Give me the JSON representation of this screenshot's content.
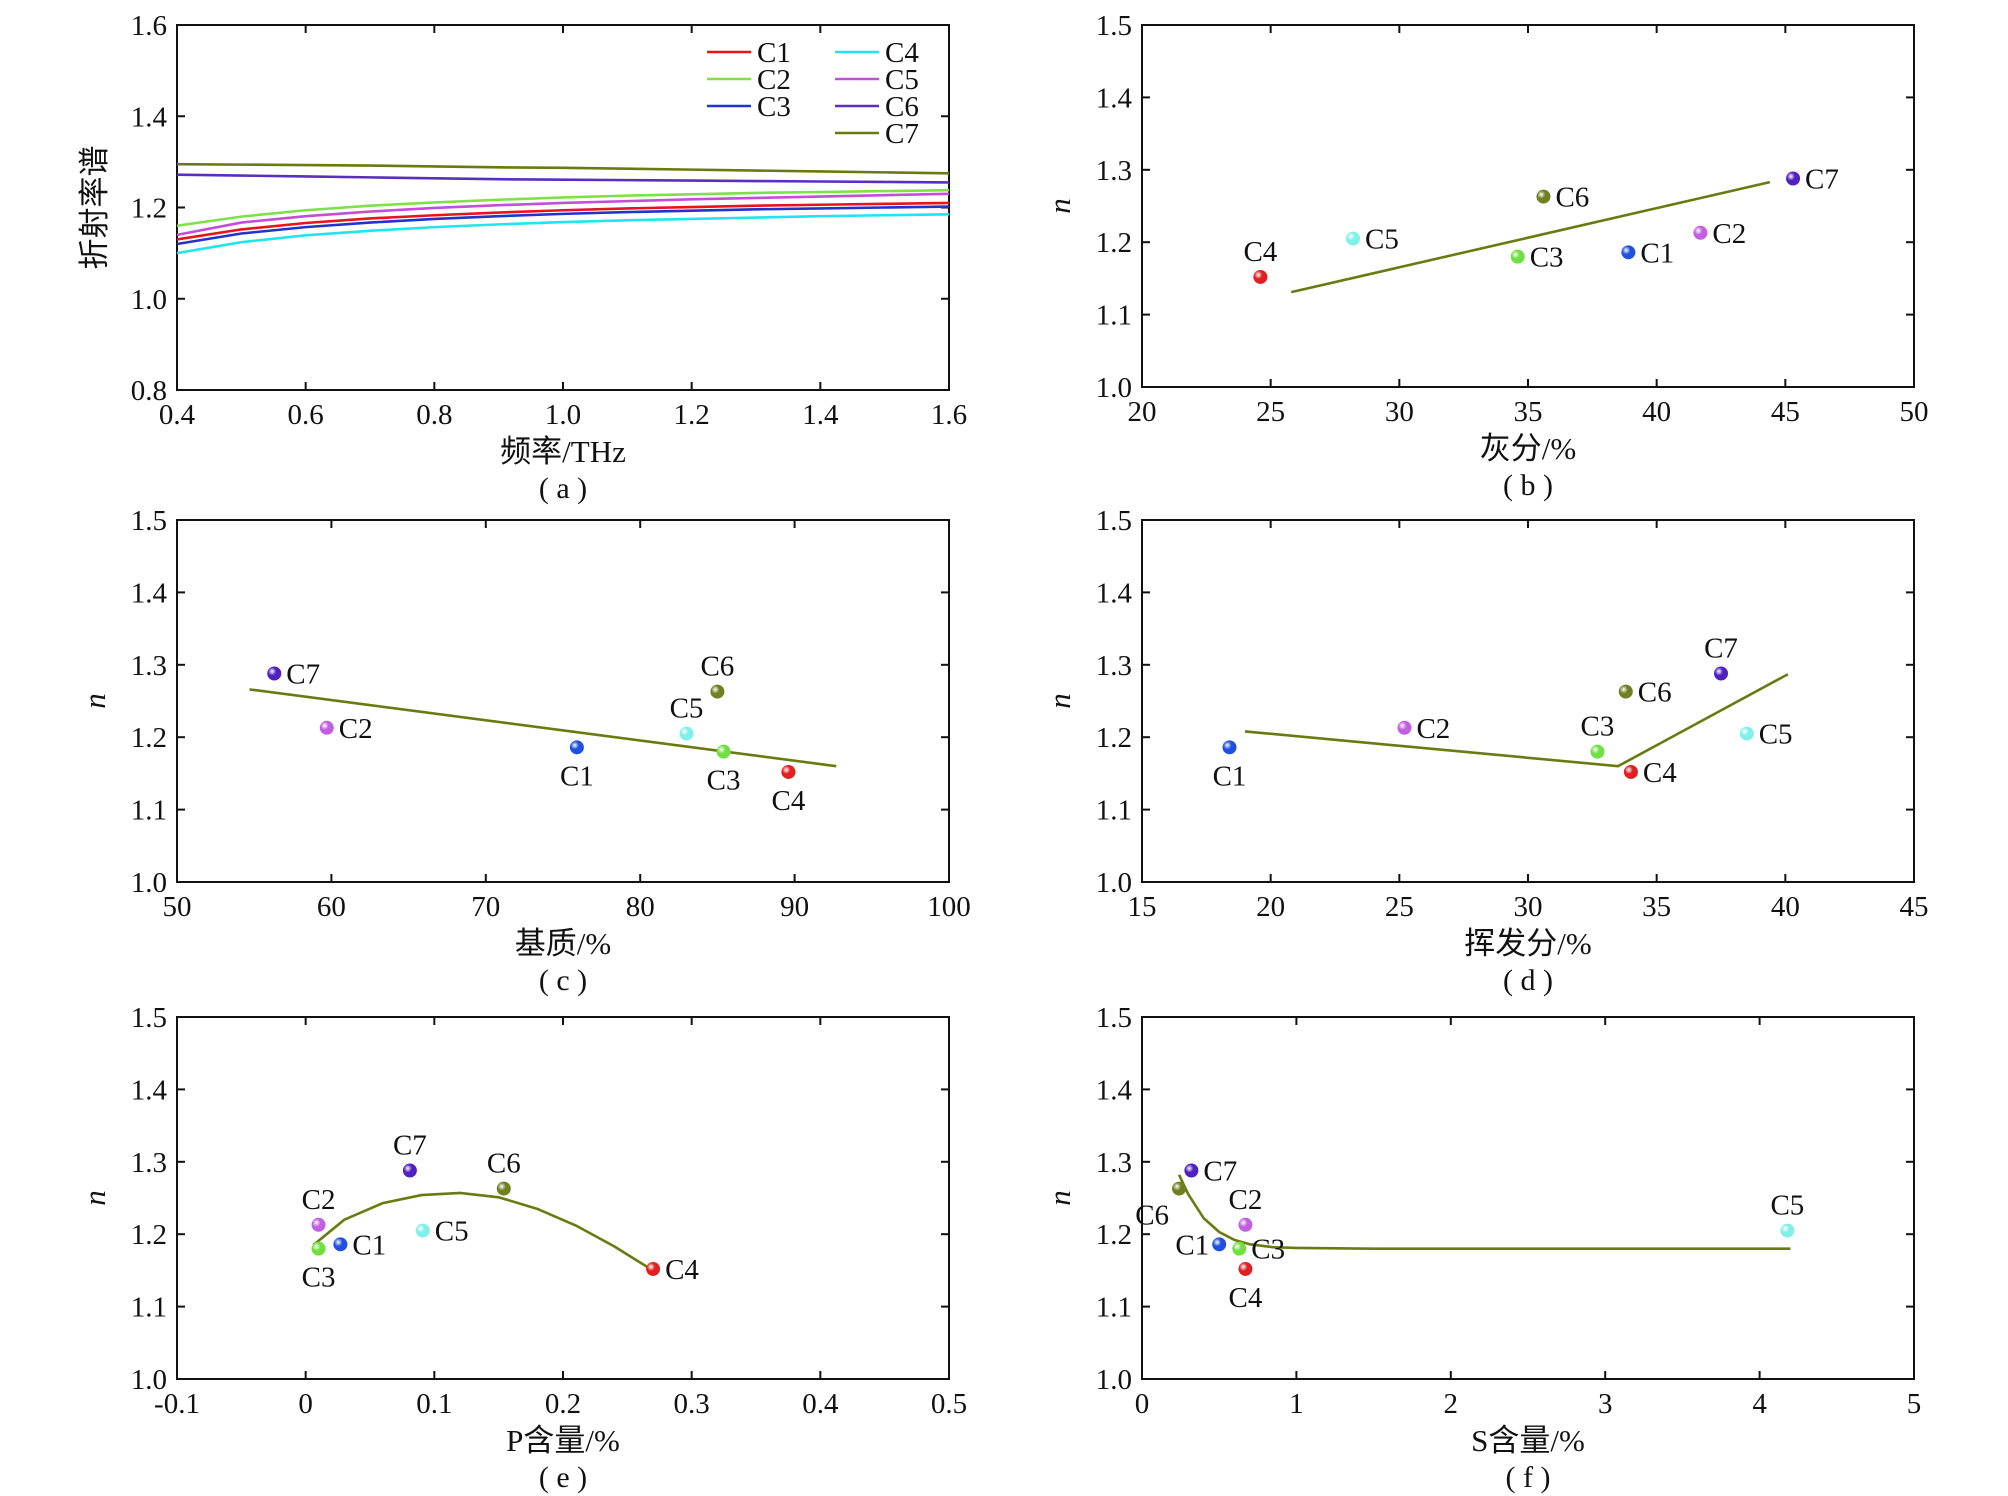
{
  "figure": {
    "colors": {
      "C1": "#e8141c",
      "C2": "#7ee04a",
      "C3": "#2233cc",
      "C4": "#22e4ee",
      "C5": "#c24fd6",
      "C6": "#5a2fc0",
      "C7": "#6b7a10",
      "fit": "#6b7a10"
    },
    "marker_colors": {
      "C1": "#2050e0",
      "C2": "#c060e0",
      "C3": "#70e040",
      "C4": "#e02020",
      "C5": "#80f0e8",
      "C6": "#708020",
      "C7": "#5020c0"
    }
  },
  "chart_data": [
    {
      "id": "a",
      "type": "line",
      "caption": "( a )",
      "xlabel": "频率/THz",
      "ylabel": "折射率谱",
      "xlim": [
        0.4,
        1.6
      ],
      "ylim": [
        0.8,
        1.6
      ],
      "xticks": [
        0.4,
        0.6,
        0.8,
        1.0,
        1.2,
        1.4,
        1.6
      ],
      "xtick_labels": [
        "0.4",
        "0.6",
        "0.8",
        "1.0",
        "1.2",
        "1.4",
        "1.6"
      ],
      "yticks": [
        0.8,
        1.0,
        1.2,
        1.4,
        1.6
      ],
      "ytick_labels": [
        "0.8",
        "1.0",
        "1.2",
        "1.4",
        "1.6"
      ],
      "legend": {
        "position": "top-right",
        "columns": 2
      },
      "x": [
        0.4,
        0.5,
        0.6,
        0.7,
        0.8,
        0.9,
        1.0,
        1.1,
        1.2,
        1.3,
        1.4,
        1.5,
        1.6
      ],
      "series": [
        {
          "name": "C1",
          "values": [
            1.13,
            1.152,
            1.166,
            1.176,
            1.183,
            1.189,
            1.194,
            1.198,
            1.201,
            1.204,
            1.206,
            1.208,
            1.21
          ]
        },
        {
          "name": "C2",
          "values": [
            1.16,
            1.18,
            1.194,
            1.204,
            1.211,
            1.217,
            1.222,
            1.226,
            1.229,
            1.232,
            1.234,
            1.236,
            1.238
          ]
        },
        {
          "name": "C3",
          "values": [
            1.12,
            1.143,
            1.157,
            1.167,
            1.175,
            1.181,
            1.186,
            1.19,
            1.193,
            1.196,
            1.198,
            1.2,
            1.202
          ]
        },
        {
          "name": "C4",
          "values": [
            1.1,
            1.124,
            1.139,
            1.149,
            1.157,
            1.163,
            1.168,
            1.172,
            1.175,
            1.178,
            1.181,
            1.183,
            1.185
          ]
        },
        {
          "name": "C5",
          "values": [
            1.14,
            1.167,
            1.181,
            1.191,
            1.199,
            1.205,
            1.21,
            1.214,
            1.218,
            1.221,
            1.224,
            1.227,
            1.23
          ]
        },
        {
          "name": "C6",
          "values": [
            1.272,
            1.27,
            1.268,
            1.266,
            1.264,
            1.262,
            1.261,
            1.26,
            1.259,
            1.258,
            1.257,
            1.256,
            1.255
          ]
        },
        {
          "name": "C7",
          "values": [
            1.295,
            1.294,
            1.293,
            1.292,
            1.29,
            1.288,
            1.287,
            1.285,
            1.283,
            1.281,
            1.279,
            1.277,
            1.275
          ]
        }
      ]
    },
    {
      "id": "b",
      "type": "scatter",
      "caption": "( b )",
      "xlabel": "灰分/%",
      "ylabel": "n",
      "xlim": [
        20,
        50
      ],
      "ylim": [
        1.0,
        1.5
      ],
      "xticks": [
        20,
        25,
        30,
        35,
        40,
        45,
        50
      ],
      "xtick_labels": [
        "20",
        "25",
        "30",
        "35",
        "40",
        "45",
        "50"
      ],
      "yticks": [
        1.0,
        1.1,
        1.2,
        1.3,
        1.4,
        1.5
      ],
      "ytick_labels": [
        "1.0",
        "1.1",
        "1.2",
        "1.3",
        "1.4",
        "1.5"
      ],
      "points": [
        {
          "label": "C4",
          "x": 24.6,
          "y": 1.152,
          "pos": "above"
        },
        {
          "label": "C5",
          "x": 28.2,
          "y": 1.205,
          "pos": "right"
        },
        {
          "label": "C3",
          "x": 34.6,
          "y": 1.18,
          "pos": "right"
        },
        {
          "label": "C6",
          "x": 35.6,
          "y": 1.263,
          "pos": "right"
        },
        {
          "label": "C1",
          "x": 38.9,
          "y": 1.186,
          "pos": "right"
        },
        {
          "label": "C2",
          "x": 41.7,
          "y": 1.213,
          "pos": "right"
        },
        {
          "label": "C7",
          "x": 45.3,
          "y": 1.288,
          "pos": "right"
        }
      ],
      "fit": {
        "x": [
          25.8,
          44.4
        ],
        "y": [
          1.131,
          1.283
        ]
      }
    },
    {
      "id": "c",
      "type": "scatter",
      "caption": "( c )",
      "xlabel": "基质/%",
      "ylabel": "n",
      "xlim": [
        50,
        100
      ],
      "ylim": [
        1.0,
        1.5
      ],
      "xticks": [
        50,
        60,
        70,
        80,
        90,
        100
      ],
      "xtick_labels": [
        "50",
        "60",
        "70",
        "80",
        "90",
        "100"
      ],
      "yticks": [
        1.0,
        1.1,
        1.2,
        1.3,
        1.4,
        1.5
      ],
      "ytick_labels": [
        "1.0",
        "1.1",
        "1.2",
        "1.3",
        "1.4",
        "1.5"
      ],
      "points": [
        {
          "label": "C7",
          "x": 56.3,
          "y": 1.288,
          "pos": "right"
        },
        {
          "label": "C2",
          "x": 59.7,
          "y": 1.213,
          "pos": "right"
        },
        {
          "label": "C1",
          "x": 75.9,
          "y": 1.186,
          "pos": "below"
        },
        {
          "label": "C5",
          "x": 83.0,
          "y": 1.205,
          "pos": "above"
        },
        {
          "label": "C6",
          "x": 85.0,
          "y": 1.263,
          "pos": "above"
        },
        {
          "label": "C3",
          "x": 85.4,
          "y": 1.18,
          "pos": "below"
        },
        {
          "label": "C4",
          "x": 89.6,
          "y": 1.152,
          "pos": "below"
        }
      ],
      "fit": {
        "x": [
          54.7,
          92.7
        ],
        "y": [
          1.266,
          1.16
        ]
      }
    },
    {
      "id": "d",
      "type": "scatter",
      "caption": "( d )",
      "xlabel": "挥发分/%",
      "ylabel": "n",
      "xlim": [
        15,
        45
      ],
      "ylim": [
        1.0,
        1.5
      ],
      "xticks": [
        15,
        20,
        25,
        30,
        35,
        40,
        45
      ],
      "xtick_labels": [
        "15",
        "20",
        "25",
        "30",
        "35",
        "40",
        "45"
      ],
      "yticks": [
        1.0,
        1.1,
        1.2,
        1.3,
        1.4,
        1.5
      ],
      "ytick_labels": [
        "1.0",
        "1.1",
        "1.2",
        "1.3",
        "1.4",
        "1.5"
      ],
      "points": [
        {
          "label": "C1",
          "x": 18.4,
          "y": 1.186,
          "pos": "below"
        },
        {
          "label": "C2",
          "x": 25.2,
          "y": 1.213,
          "pos": "right"
        },
        {
          "label": "C3",
          "x": 32.7,
          "y": 1.18,
          "pos": "above"
        },
        {
          "label": "C6",
          "x": 33.8,
          "y": 1.263,
          "pos": "right"
        },
        {
          "label": "C4",
          "x": 34.0,
          "y": 1.152,
          "pos": "right"
        },
        {
          "label": "C7",
          "x": 37.5,
          "y": 1.288,
          "pos": "above"
        },
        {
          "label": "C5",
          "x": 38.5,
          "y": 1.205,
          "pos": "right"
        }
      ],
      "fit": {
        "x": [
          19.0,
          33.5,
          40.1
        ],
        "y": [
          1.208,
          1.16,
          1.287
        ]
      }
    },
    {
      "id": "e",
      "type": "scatter",
      "caption": "( e )",
      "xlabel": "P含量/%",
      "ylabel": "n",
      "xlim": [
        -0.1,
        0.5
      ],
      "ylim": [
        1.0,
        1.5
      ],
      "xticks": [
        -0.1,
        0.0,
        0.1,
        0.2,
        0.3,
        0.4,
        0.5
      ],
      "xtick_labels": [
        "-0.1",
        "0",
        "0.1",
        "0.2",
        "0.3",
        "0.4",
        "0.5"
      ],
      "yticks": [
        1.0,
        1.1,
        1.2,
        1.3,
        1.4,
        1.5
      ],
      "ytick_labels": [
        "1.0",
        "1.1",
        "1.2",
        "1.3",
        "1.4",
        "1.5"
      ],
      "points": [
        {
          "label": "C2",
          "x": 0.01,
          "y": 1.213,
          "pos": "above"
        },
        {
          "label": "C3",
          "x": 0.01,
          "y": 1.18,
          "pos": "below"
        },
        {
          "label": "C1",
          "x": 0.027,
          "y": 1.186,
          "pos": "right"
        },
        {
          "label": "C7",
          "x": 0.081,
          "y": 1.288,
          "pos": "above"
        },
        {
          "label": "C5",
          "x": 0.091,
          "y": 1.205,
          "pos": "right"
        },
        {
          "label": "C6",
          "x": 0.154,
          "y": 1.263,
          "pos": "above"
        },
        {
          "label": "C4",
          "x": 0.27,
          "y": 1.152,
          "pos": "right"
        }
      ],
      "fit": {
        "x": [
          0.006,
          0.03,
          0.06,
          0.09,
          0.12,
          0.15,
          0.18,
          0.21,
          0.24,
          0.268
        ],
        "y": [
          1.185,
          1.22,
          1.243,
          1.254,
          1.257,
          1.251,
          1.235,
          1.212,
          1.183,
          1.152
        ]
      }
    },
    {
      "id": "f",
      "type": "scatter",
      "caption": "( f )",
      "xlabel": "S含量/%",
      "ylabel": "n",
      "xlim": [
        0,
        5
      ],
      "ylim": [
        1.0,
        1.5
      ],
      "xticks": [
        0,
        1,
        2,
        3,
        4,
        5
      ],
      "xtick_labels": [
        "0",
        "1",
        "2",
        "3",
        "4",
        "5"
      ],
      "yticks": [
        1.0,
        1.1,
        1.2,
        1.3,
        1.4,
        1.5
      ],
      "ytick_labels": [
        "1.0",
        "1.1",
        "1.2",
        "1.3",
        "1.4",
        "1.5"
      ],
      "points": [
        {
          "label": "C6",
          "x": 0.24,
          "y": 1.263,
          "pos": "below-left"
        },
        {
          "label": "C7",
          "x": 0.32,
          "y": 1.288,
          "pos": "right"
        },
        {
          "label": "C1",
          "x": 0.5,
          "y": 1.186,
          "pos": "left"
        },
        {
          "label": "C3",
          "x": 0.63,
          "y": 1.18,
          "pos": "right"
        },
        {
          "label": "C2",
          "x": 0.67,
          "y": 1.213,
          "pos": "above"
        },
        {
          "label": "C4",
          "x": 0.67,
          "y": 1.152,
          "pos": "below"
        },
        {
          "label": "C5",
          "x": 4.18,
          "y": 1.205,
          "pos": "above"
        }
      ],
      "fit": {
        "x": [
          0.24,
          0.3,
          0.4,
          0.5,
          0.6,
          0.7,
          0.85,
          1.0,
          1.5,
          2.0,
          3.0,
          4.2
        ],
        "y": [
          1.282,
          1.255,
          1.222,
          1.203,
          1.192,
          1.186,
          1.182,
          1.181,
          1.18,
          1.18,
          1.18,
          1.18
        ]
      }
    }
  ]
}
